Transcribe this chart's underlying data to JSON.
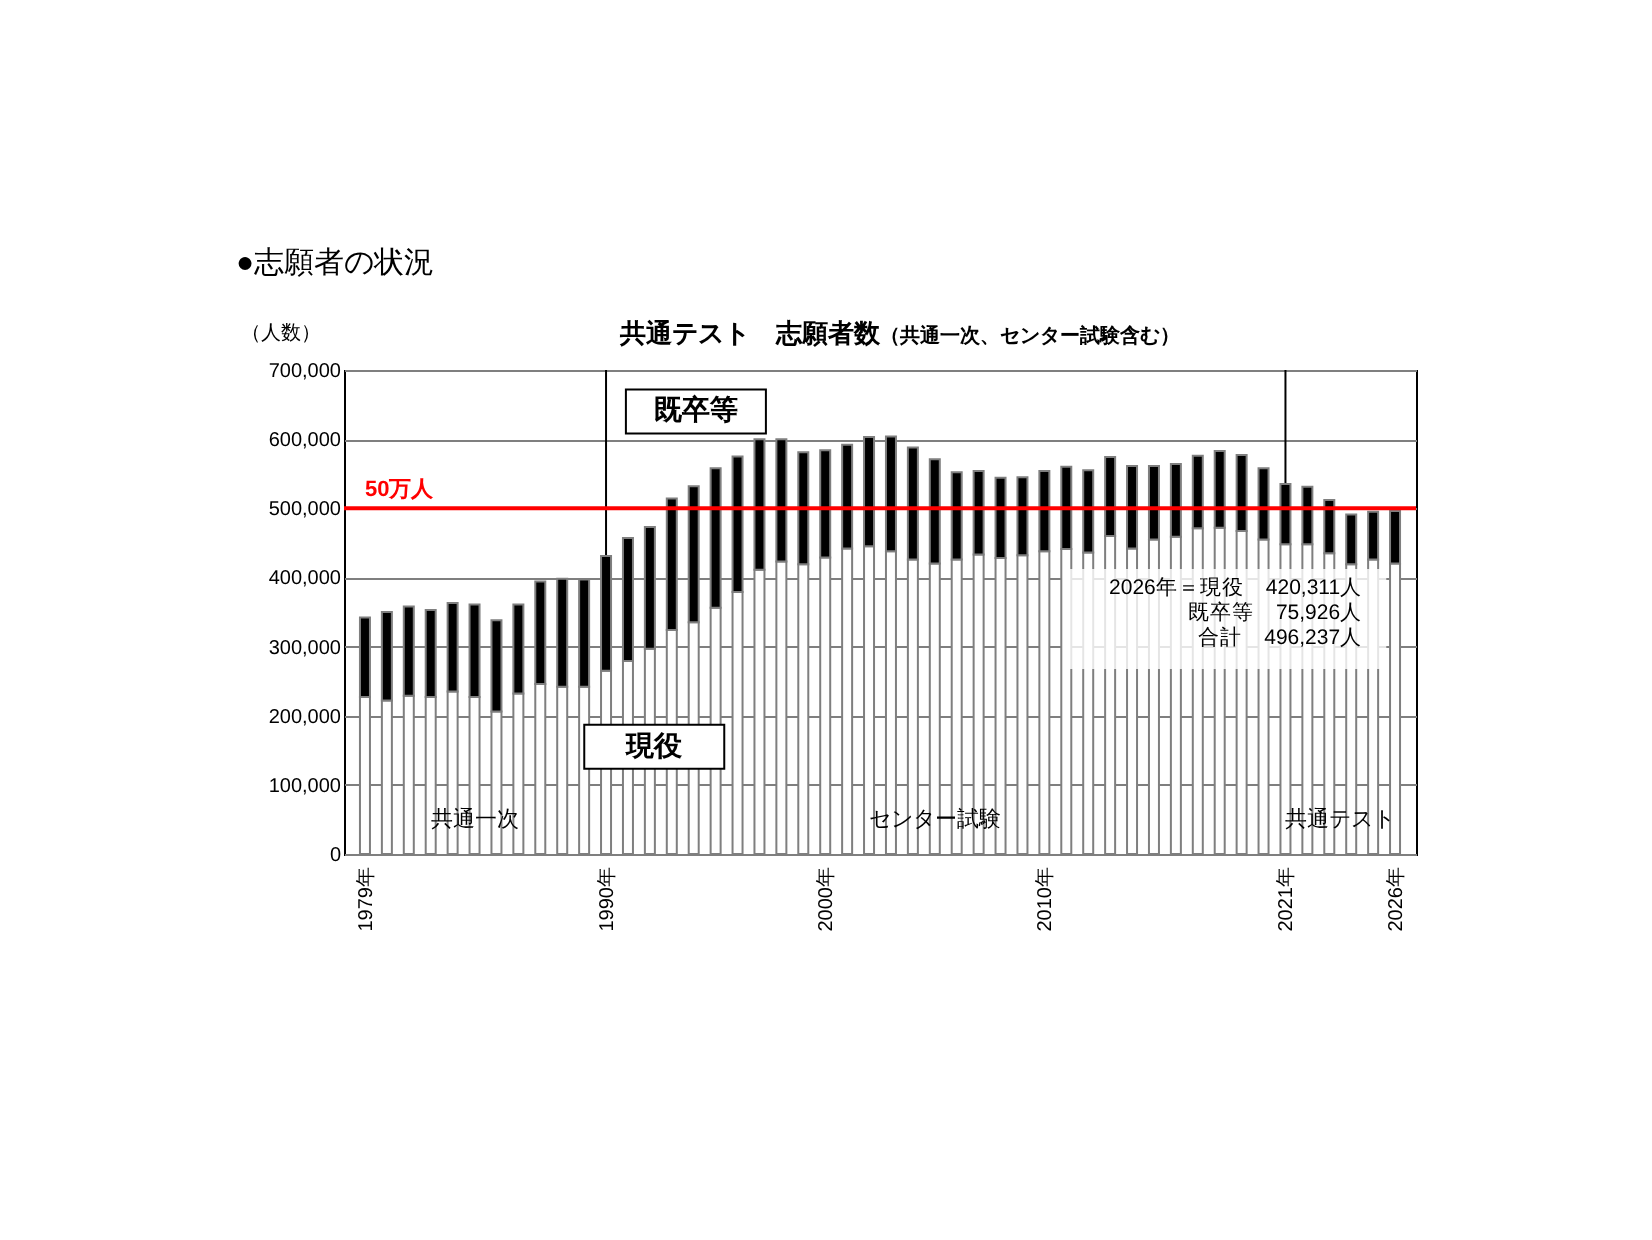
{
  "chart_data": {
    "type": "bar",
    "stacked": true,
    "title": "共通テスト　志願者数",
    "subtitle": "（共通一次、センター試験含む）",
    "ylabel": "（人数）",
    "categories": [
      "1979年",
      null,
      null,
      null,
      null,
      null,
      null,
      null,
      null,
      null,
      null,
      "1990年",
      null,
      null,
      null,
      null,
      null,
      null,
      null,
      null,
      null,
      "2000年",
      null,
      null,
      null,
      null,
      null,
      null,
      null,
      null,
      null,
      "2010年",
      null,
      null,
      null,
      null,
      null,
      null,
      null,
      null,
      null,
      null,
      "2021年",
      null,
      null,
      null,
      null,
      "2026年"
    ],
    "series": [
      {
        "name": "現役",
        "color": "#ffffff",
        "values": [
          227000,
          222000,
          229000,
          227000,
          235000,
          227000,
          206000,
          232000,
          246000,
          242000,
          242000,
          265000,
          279000,
          297000,
          324000,
          335000,
          356000,
          379000,
          411000,
          423000,
          419000,
          429000,
          442000,
          445000,
          438000,
          426000,
          420000,
          426000,
          433000,
          428000,
          432000,
          438000,
          441000,
          436000,
          460000,
          442000,
          455000,
          459000,
          471000,
          472000,
          467000,
          455000,
          448000,
          448000,
          435000,
          419000,
          426000,
          420311
        ]
      },
      {
        "name": "既卒等",
        "color": "#000000",
        "values": [
          115000,
          128000,
          129000,
          126000,
          128000,
          134000,
          132000,
          129000,
          148000,
          156000,
          155000,
          166000,
          178000,
          176000,
          190000,
          197000,
          202000,
          196000,
          189000,
          177000,
          162000,
          155000,
          150000,
          158000,
          166000,
          162000,
          151000,
          126000,
          121000,
          116000,
          113000,
          116000,
          119000,
          119000,
          114000,
          119000,
          106000,
          105000,
          105000,
          111000,
          110000,
          103000,
          87000,
          83000,
          77000,
          72000,
          69000,
          75926
        ]
      }
    ],
    "ylim": [
      0,
      700000
    ],
    "yticks": [
      0,
      {
        "value": 100000,
        "label": "100,000"
      },
      {
        "value": 200000,
        "label": "200,000"
      },
      {
        "value": 300000,
        "label": "300,000"
      },
      {
        "value": 400000,
        "label": "400,000"
      },
      {
        "value": 500000,
        "label": "500,000"
      },
      {
        "value": 600000,
        "label": "600,000"
      },
      {
        "value": 700000,
        "label": "700,000"
      }
    ],
    "grid": "y",
    "ref_lines": [
      {
        "axis": "y",
        "value": 500000,
        "label": "50万人",
        "color": "#ff0000"
      },
      {
        "axis": "x",
        "value": "1990年",
        "color": "#000000"
      },
      {
        "axis": "x",
        "value": "2021年",
        "color": "#000000"
      }
    ],
    "annotations": [
      "●志願者の状況",
      "共通一次",
      "センター試験",
      "共通テスト",
      "2026年＝現役　420,311人",
      "既卒等　75,926人",
      "合計　496,237人"
    ]
  }
}
